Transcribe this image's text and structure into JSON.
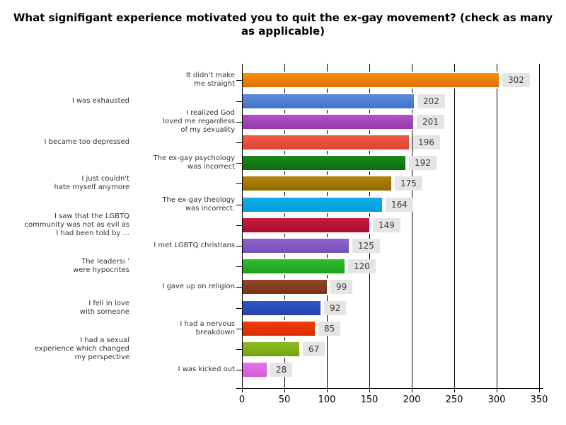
{
  "chart_data": {
    "type": "bar",
    "orientation": "horizontal",
    "title": "What signifigant experience motivated you to quit the ex-gay movement? (check as many as applicable)",
    "title_lines": [
      "What signifigant experience motivated you to quit the ex-gay movement? (check as many",
      "as applicable)"
    ],
    "xlabel": "",
    "ylabel": "",
    "xlim": [
      0,
      350
    ],
    "x_ticks": [
      0,
      50,
      100,
      150,
      200,
      250,
      300,
      350
    ],
    "grid": true,
    "legend": "none",
    "value_labels": true,
    "value_label_bg": "#e5e5e5",
    "categories": [
      "It didn't make me straight",
      "I was exhausted",
      "I realized God loved me regardless of my sexuality",
      "I became too depressed",
      "The ex-gay psychology was incorrect",
      "I just couldn't hate myself anymore",
      "The ex-gay theology was incorrect.",
      "I saw that the LGBTQ community was not as evil as I had been told by ...",
      "I met LGBTQ christians",
      "The leadersı ʼ were hypocrites",
      "I gave up on religion",
      "I fell in love with someone",
      "I had a nervous breakdown",
      "I had a sexual experience which changed my perspective",
      "I was kicked out"
    ],
    "values": [
      302,
      202,
      201,
      196,
      192,
      175,
      164,
      149,
      125,
      120,
      99,
      92,
      85,
      67,
      28
    ],
    "rows": [
      {
        "label_lines": [
          "It didn't make",
          "me straight"
        ],
        "label_column": "inner",
        "value": 302,
        "color_top": "#f8920b",
        "color_bottom": "#e06e00"
      },
      {
        "label_lines": [
          "I was exhausted"
        ],
        "label_column": "outer",
        "value": 202,
        "color_top": "#5d8cdb",
        "color_bottom": "#4273c9"
      },
      {
        "label_lines": [
          "I realized God",
          "loved me regardless",
          "of my sexuality"
        ],
        "label_column": "inner",
        "value": 201,
        "color_top": "#b251c8",
        "color_bottom": "#9838ad"
      },
      {
        "label_lines": [
          "I became too depressed"
        ],
        "label_column": "outer",
        "value": 196,
        "color_top": "#f15b49",
        "color_bottom": "#db442e"
      },
      {
        "label_lines": [
          "The ex-gay psychology",
          "was incorrect"
        ],
        "label_column": "inner",
        "value": 192,
        "color_top": "#1e8a1e",
        "color_bottom": "#0b6d0b"
      },
      {
        "label_lines": [
          "I just couldn't",
          "hate myself anymore"
        ],
        "label_column": "outer",
        "value": 175,
        "color_top": "#b5830b",
        "color_bottom": "#8f6800"
      },
      {
        "label_lines": [
          "The ex-gay theology",
          "was incorrect."
        ],
        "label_column": "inner",
        "value": 164,
        "color_top": "#10aeeb",
        "color_bottom": "#009edc"
      },
      {
        "label_lines": [
          "I saw that the LGBTQ",
          "community was not as evil as",
          "I had been told by ..."
        ],
        "label_column": "outer",
        "value": 149,
        "color_top": "#c41e40",
        "color_bottom": "#ad0a2d"
      },
      {
        "label_lines": [
          "I met LGBTQ christians"
        ],
        "label_column": "inner",
        "value": 125,
        "color_top": "#8a64cc",
        "color_bottom": "#7950bc"
      },
      {
        "label_lines": [
          "The leadersı ʼ",
          "were hypocrites"
        ],
        "label_column": "outer",
        "value": 120,
        "color_top": "#2ebe2e",
        "color_bottom": "#1fa01f"
      },
      {
        "label_lines": [
          "I gave up on religion"
        ],
        "label_column": "inner",
        "value": 99,
        "color_top": "#93462a",
        "color_bottom": "#7b3317"
      },
      {
        "label_lines": [
          "I fell in love",
          "with someone"
        ],
        "label_column": "outer",
        "value": 92,
        "color_top": "#3056c6",
        "color_bottom": "#2543b0"
      },
      {
        "label_lines": [
          "I had a nervous",
          "breakdown"
        ],
        "label_column": "inner",
        "value": 85,
        "color_top": "#f13b02",
        "color_bottom": "#da2d00"
      },
      {
        "label_lines": [
          "I had a sexual",
          "experience which changed",
          "my perspective"
        ],
        "label_column": "outer",
        "value": 67,
        "color_top": "#8bbc24",
        "color_bottom": "#74a50e"
      },
      {
        "label_lines": [
          "I was kicked out"
        ],
        "label_column": "inner",
        "value": 28,
        "color_top": "#e673e6",
        "color_bottom": "#d75ad7"
      }
    ]
  }
}
